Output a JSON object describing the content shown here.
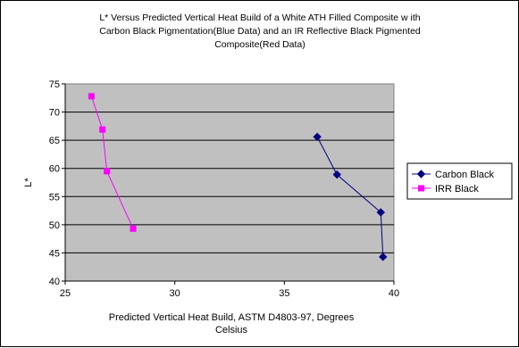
{
  "chart_data": {
    "type": "scatter",
    "title_lines": [
      "L* Versus Predicted Vertical Heat Build of a White ATH Filled Composite w ith",
      "Carbon Black Pigmentation(Blue Data) and an IR Reflective Black Pigmented",
      "Composite(Red Data)"
    ],
    "xlabel_lines": [
      "Predicted Vertical Heat Build, ASTM D4803-97, Degrees",
      "Celsius"
    ],
    "ylabel": "L*",
    "xlim": [
      25,
      40
    ],
    "ylim": [
      40,
      75
    ],
    "xticks": [
      25,
      30,
      35,
      40
    ],
    "yticks": [
      40,
      45,
      50,
      55,
      60,
      65,
      70,
      75
    ],
    "grid": "horizontal",
    "plot_background": "#c0c0c0",
    "legend_position": "right",
    "series": [
      {
        "name": "Carbon Black",
        "color": "#000080",
        "marker": "diamond",
        "points": [
          [
            36.5,
            65.6
          ],
          [
            37.4,
            58.9
          ],
          [
            39.4,
            52.2
          ],
          [
            39.5,
            44.3
          ]
        ]
      },
      {
        "name": "IRR Black",
        "color": "#ff00ff",
        "marker": "square",
        "points": [
          [
            26.2,
            72.8
          ],
          [
            26.7,
            66.9
          ],
          [
            26.9,
            59.5
          ],
          [
            28.1,
            49.3
          ]
        ]
      }
    ]
  }
}
